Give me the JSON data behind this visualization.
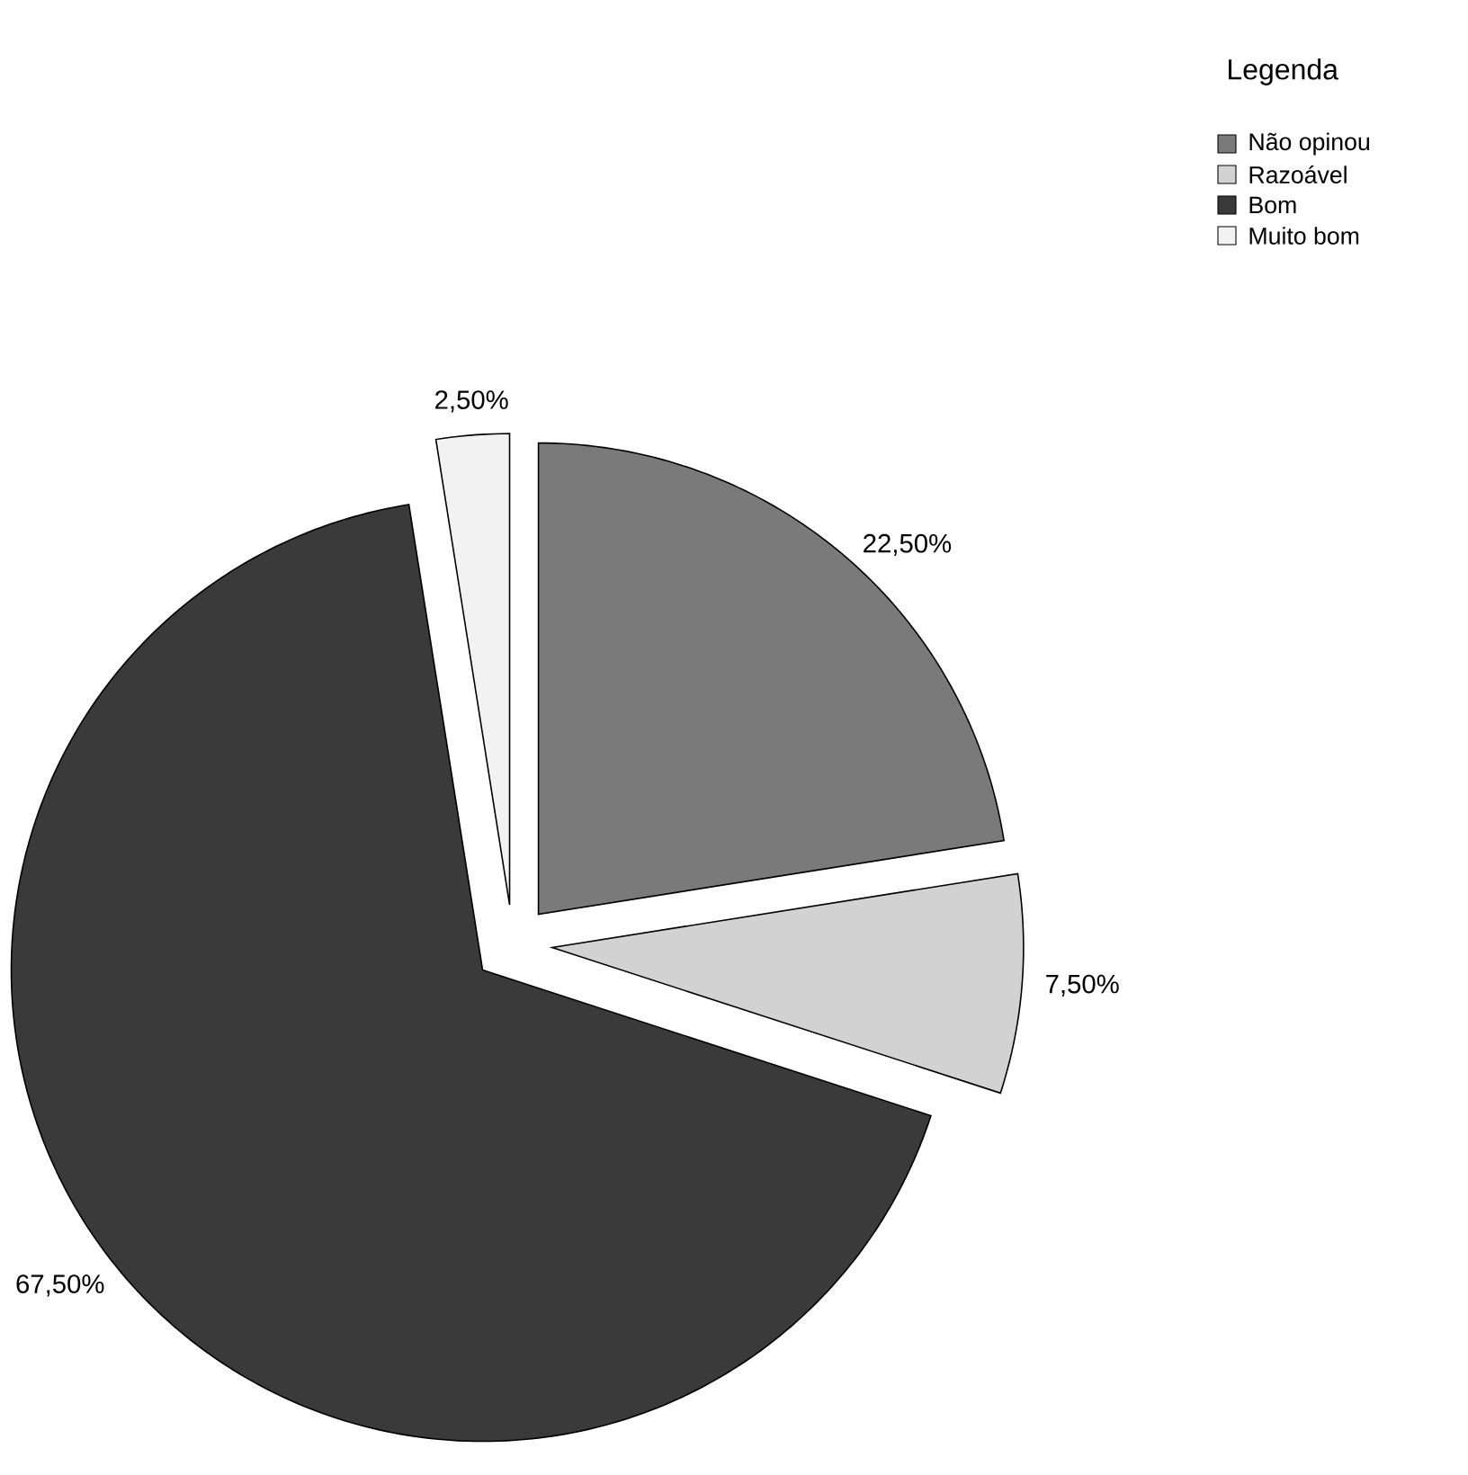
{
  "chart_data": {
    "type": "pie",
    "legend_title": "Legenda",
    "legend": "top right",
    "categories": [
      "Não opinou",
      "Razoável",
      "Bom",
      "Muito bom"
    ],
    "values": [
      22.5,
      7.5,
      67.5,
      2.5
    ],
    "colors": [
      "#7a7a7a",
      "#d2d2d2",
      "#3a3a3a",
      "#f2f2f2"
    ],
    "value_labels": [
      "22,50%",
      "7,50%",
      "67,50%",
      "2,50%"
    ]
  }
}
